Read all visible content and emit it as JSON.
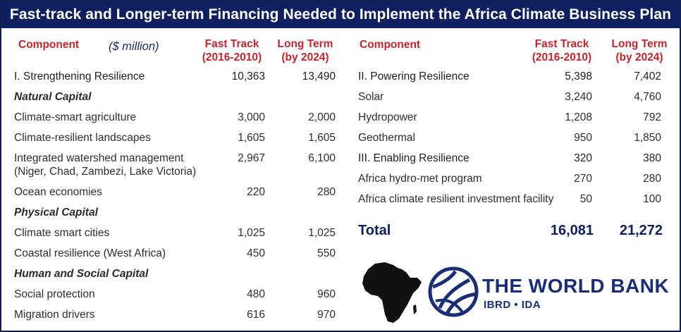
{
  "title": "Fast-track and Longer-term Financing Needed to Implement the Africa Climate Business Plan",
  "left": {
    "header": {
      "component": "Component",
      "units": "($ million)",
      "fast_track": "Fast Track",
      "fast_track_years": "(2016-2010)",
      "long_term": "Long Term",
      "long_term_years": "(by 2024)"
    },
    "rows": [
      {
        "label": "I. Strengthening Resilience",
        "fast": "10,363",
        "long": "13,490"
      },
      {
        "label": "Natural Capital",
        "fast": "",
        "long": ""
      },
      {
        "label": "Climate-smart agriculture",
        "fast": "3,000",
        "long": "2,000"
      },
      {
        "label": "Climate-resilient landscapes",
        "fast": "1,605",
        "long": "1,605"
      },
      {
        "label": "Integrated watershed management",
        "label2": "(Niger, Chad, Zambezi, Lake Victoria)",
        "fast": "2,967",
        "long": "6,100"
      },
      {
        "label": "Ocean economies",
        "fast": "220",
        "long": "280"
      },
      {
        "label": "Physical Capital",
        "fast": "",
        "long": ""
      },
      {
        "label": "Climate smart cities",
        "fast": "1,025",
        "long": "1,025"
      },
      {
        "label": "Coastal resilience (West Africa)",
        "fast": "450",
        "long": "550"
      },
      {
        "label": "Human and Social Capital",
        "fast": "",
        "long": ""
      },
      {
        "label": "Social protection",
        "fast": "480",
        "long": "960"
      },
      {
        "label": "Migration drivers",
        "fast": "616",
        "long": "970"
      }
    ]
  },
  "right": {
    "header": {
      "component": "Component",
      "fast_track": "Fast Track",
      "fast_track_years": "(2016-2010)",
      "long_term": "Long Term",
      "long_term_years": "(by 2024)"
    },
    "rows": [
      {
        "label": "II. Powering Resilience",
        "fast": "5,398",
        "long": "7,402"
      },
      {
        "label": "Solar",
        "fast": "3,240",
        "long": "4,760"
      },
      {
        "label": "Hydropower",
        "fast": "1,208",
        "long": "792"
      },
      {
        "label": "Geothermal",
        "fast": "950",
        "long": "1,850"
      },
      {
        "label": "III. Enabling Resilience",
        "fast": "320",
        "long": "380"
      },
      {
        "label": "Africa hydro-met program",
        "fast": "270",
        "long": "280"
      },
      {
        "label": "Africa climate resilient investment facility",
        "fast": "50",
        "long": "100"
      }
    ],
    "total": {
      "label": "Total",
      "fast": "16,081",
      "long": "21,272"
    }
  },
  "logo": {
    "name": "THE WORLD BANK",
    "sub": "IBRD • IDA",
    "color": "#1a2d78"
  },
  "colors": {
    "title_bg": "#0f2060",
    "header_red": "#c8232c",
    "total_blue": "#0f2060"
  }
}
